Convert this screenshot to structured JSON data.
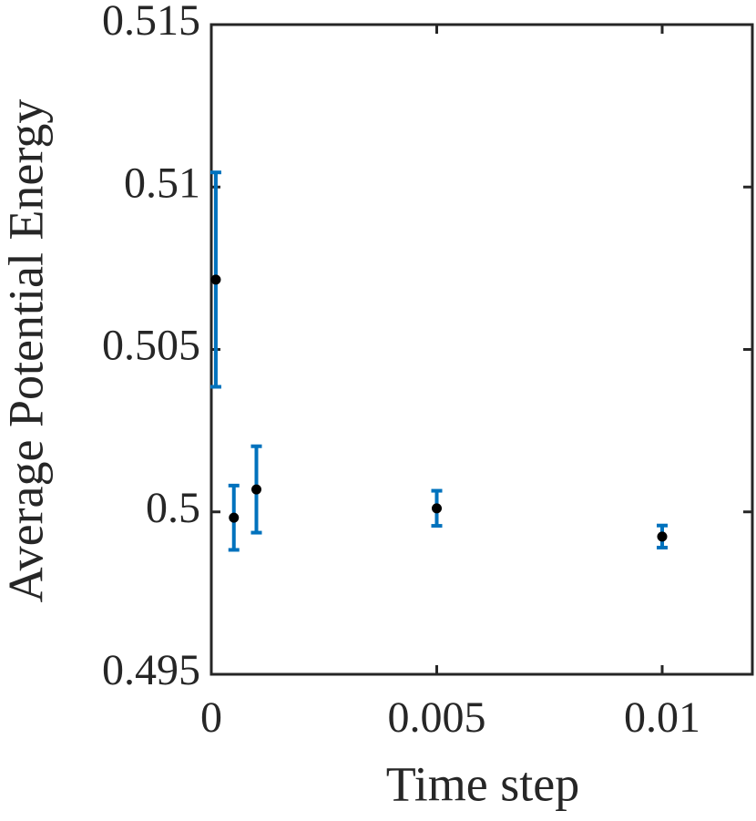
{
  "chart_data": {
    "type": "errorbar",
    "x_label": "Time step",
    "y_label": "Average Potential Energy",
    "series": [
      {
        "x": [
          0.0001,
          0.0005,
          0.001,
          0.005,
          0.01
        ],
        "values": [
          0.50715,
          0.49982,
          0.50069,
          0.50011,
          0.49924
        ],
        "errors": [
          0.0033,
          0.00099,
          0.00133,
          0.00054,
          0.00034
        ],
        "color": "#0072bd",
        "marker_color": "#000000"
      }
    ],
    "xlim": [
      0,
      0.012
    ],
    "xticks": [
      0,
      0.005,
      0.01
    ],
    "ylim": [
      0.495,
      0.515
    ],
    "yticks": [
      0.495,
      0.5,
      0.505,
      0.51,
      0.515
    ],
    "grid": false
  }
}
